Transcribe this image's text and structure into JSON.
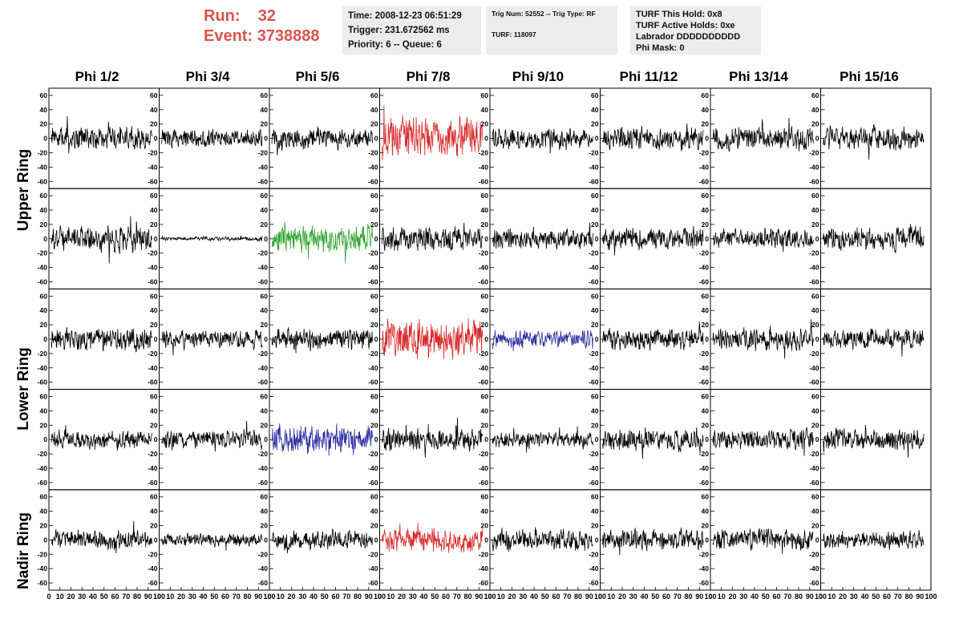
{
  "header": {
    "run_label": "Run:",
    "run_value": "32",
    "event_label": "Event:",
    "event_value": "3738888",
    "time_line": "Time: 2008-12-23 06:51:29",
    "trigger_line": "Trigger: 231.672562 ms",
    "priority_line": "Priority: 6 -- Queue: 6",
    "trig_line": "Trig Num: 52552 -- Trig Type: RF",
    "turf_line": "TURF: 118097",
    "turf_hold": "TURF This Hold: 0x8",
    "turf_active": "TURF Active Holds: 0xe",
    "labrador": "Labrador DDDDDDDDDD",
    "phi_mask": "Phi Mask: 0"
  },
  "columns": [
    "Phi 1/2",
    "Phi 3/4",
    "Phi 5/6",
    "Phi 7/8",
    "Phi 9/10",
    "Phi 11/12",
    "Phi 13/14",
    "Phi 15/16"
  ],
  "ring_labels": [
    "Upper Ring",
    "Lower Ring",
    "Nadir Ring"
  ],
  "chart_data": {
    "type": "line",
    "grid": false,
    "ylim": [
      -70,
      70
    ],
    "xlim": [
      0,
      100
    ],
    "yticks": [
      "60",
      "40",
      "20",
      "0",
      "-20",
      "-40",
      "-60"
    ],
    "xticks": [
      "0",
      "10",
      "20",
      "30",
      "40",
      "50",
      "60",
      "70",
      "80",
      "90",
      "100"
    ],
    "colors": {
      "red": "#d62728",
      "green": "#2ca02c",
      "blue": "#2a2aa0",
      "black": "#000000"
    },
    "panel_colors": [
      [
        "black",
        "black",
        "black",
        "red",
        "black",
        "black",
        "black",
        "black"
      ],
      [
        "black",
        "black",
        "green",
        "black",
        "black",
        "black",
        "black",
        "black"
      ],
      [
        "black",
        "black",
        "black",
        "red",
        "blue",
        "black",
        "black",
        "black"
      ],
      [
        "black",
        "black",
        "blue",
        "black",
        "black",
        "black",
        "black",
        "black"
      ],
      [
        "black",
        "black",
        "black",
        "red",
        "black",
        "black",
        "black",
        "black"
      ]
    ],
    "panel_amplitudes": [
      [
        18,
        14,
        16,
        32,
        16,
        17,
        18,
        18
      ],
      [
        20,
        3,
        22,
        18,
        16,
        17,
        15,
        18
      ],
      [
        18,
        14,
        16,
        32,
        14,
        17,
        17,
        16
      ],
      [
        14,
        14,
        22,
        18,
        12,
        18,
        17,
        17
      ],
      [
        15,
        10,
        15,
        20,
        17,
        17,
        16,
        13
      ]
    ],
    "samples_per_panel": 260
  }
}
